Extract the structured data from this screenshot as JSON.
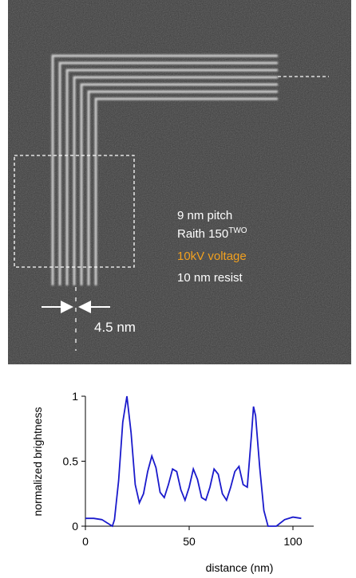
{
  "image": {
    "annotations": [
      "9 nm pitch",
      "Raith 150",
      "TWO",
      "10kV voltage",
      "10 nm resist"
    ],
    "scale_label": "4.5 nm"
  },
  "chart_data": {
    "type": "line",
    "x_label": "distance (nm)",
    "y_label": "normalized brightness",
    "x": [
      0,
      4,
      8,
      11,
      13,
      14,
      16,
      18,
      20,
      22,
      24,
      26,
      28,
      30,
      32,
      34,
      36,
      38,
      40,
      42,
      44,
      46,
      48,
      50,
      52,
      54,
      56,
      58,
      60,
      62,
      64,
      66,
      68,
      70,
      72,
      74,
      76,
      78,
      80,
      81,
      82,
      84,
      86,
      88,
      92,
      96,
      100,
      104
    ],
    "series": [
      {
        "color": "#1a1acc",
        "values": [
          0.06,
          0.06,
          0.05,
          0.02,
          0.0,
          0.05,
          0.35,
          0.8,
          1.0,
          0.72,
          0.32,
          0.18,
          0.25,
          0.42,
          0.54,
          0.45,
          0.26,
          0.22,
          0.32,
          0.44,
          0.42,
          0.28,
          0.2,
          0.3,
          0.44,
          0.36,
          0.22,
          0.2,
          0.3,
          0.44,
          0.4,
          0.25,
          0.2,
          0.3,
          0.42,
          0.46,
          0.32,
          0.3,
          0.7,
          0.92,
          0.85,
          0.45,
          0.12,
          0.0,
          0.0,
          0.05,
          0.07,
          0.06
        ]
      }
    ],
    "xlim": [
      0,
      110
    ],
    "ylim": [
      0,
      1
    ],
    "xticks": [
      0,
      50,
      100
    ],
    "yticks": [
      0,
      0.5,
      1
    ]
  }
}
